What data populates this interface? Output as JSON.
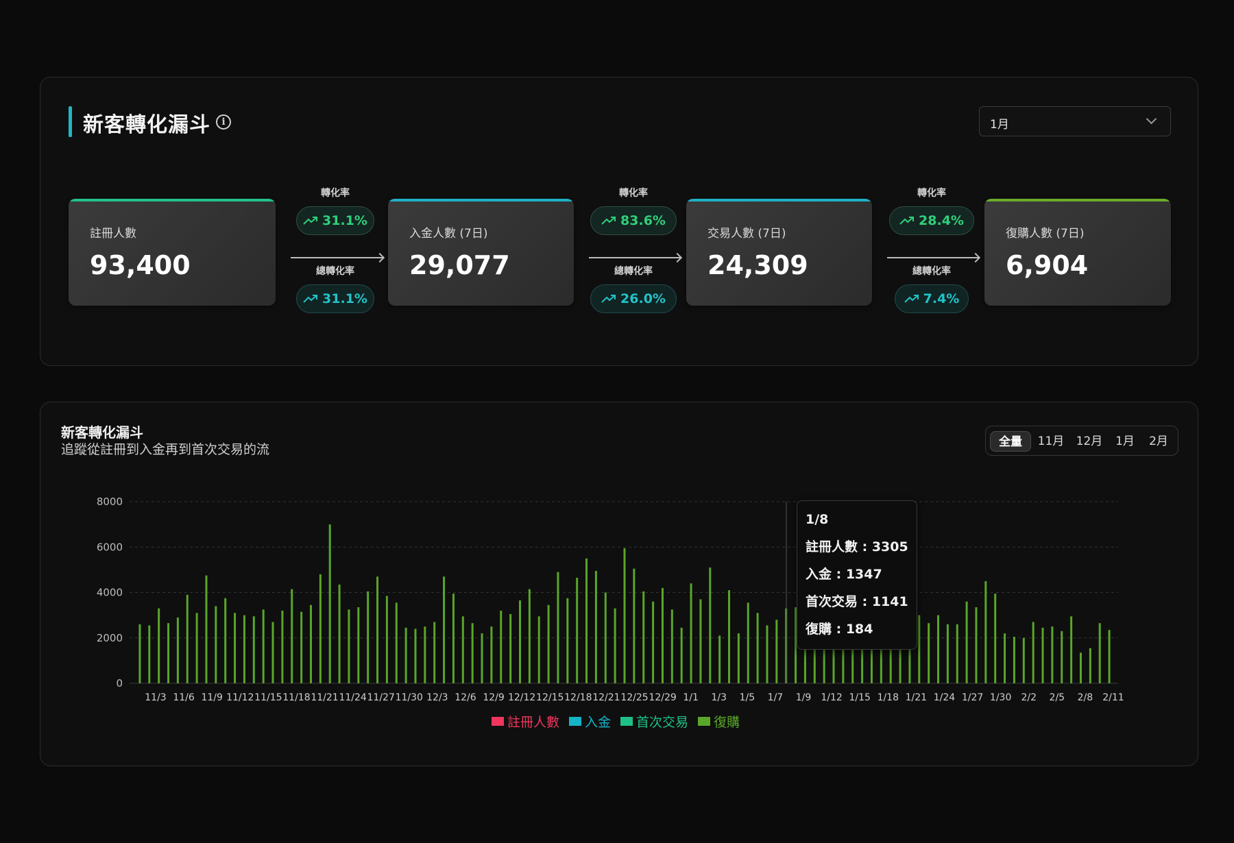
{
  "funnel": {
    "title": "新客轉化漏斗",
    "month_select": {
      "value": "1月"
    },
    "stages": [
      {
        "label": "註冊人數",
        "value": "93,400",
        "color": "#22c08a"
      },
      {
        "label": "入金人數 (7日)",
        "value": "29,077",
        "color": "#1fb0c4"
      },
      {
        "label": "交易人數 (7日)",
        "value": "24,309",
        "color": "#1fb0c4"
      },
      {
        "label": "復購人數 (7日)",
        "value": "6,904",
        "color": "#6aab2a"
      }
    ],
    "transitions": [
      {
        "rate_label": "轉化率",
        "rate": "31.1%",
        "total_label": "總轉化率",
        "total": "31.1%"
      },
      {
        "rate_label": "轉化率",
        "rate": "83.6%",
        "total_label": "總轉化率",
        "total": "26.0%"
      },
      {
        "rate_label": "轉化率",
        "rate": "28.4%",
        "total_label": "總轉化率",
        "total": "7.4%"
      }
    ]
  },
  "chart_panel": {
    "title": "新客轉化漏斗",
    "subtitle": "追蹤從註冊到入金再到首次交易的流",
    "range_tabs": [
      {
        "label": "全量",
        "active": true
      },
      {
        "label": "11月",
        "active": false
      },
      {
        "label": "12月",
        "active": false
      },
      {
        "label": "1月",
        "active": false
      },
      {
        "label": "2月",
        "active": false
      }
    ],
    "tooltip": {
      "date": "1/8",
      "lines": [
        "註冊人數 : 3305",
        "入金 : 1347",
        "首次交易 : 1141",
        "復購 : 184"
      ]
    },
    "legend": [
      {
        "name": "註冊人數",
        "color": "#f0365e"
      },
      {
        "name": "入金",
        "color": "#16b4c8"
      },
      {
        "name": "首次交易",
        "color": "#1fc086"
      },
      {
        "name": "復購",
        "color": "#5aa62a"
      }
    ]
  },
  "chart_data": {
    "type": "bar",
    "series": [
      {
        "name": "復購",
        "color": "#5aa62a"
      }
    ],
    "y_ticks": [
      "8000",
      "6000",
      "4000",
      "2000",
      "0"
    ],
    "ylim": [
      0,
      8000
    ],
    "grid": true,
    "legend_position": "bottom",
    "x_tick_labels": [
      "11/3",
      "11/6",
      "11/9",
      "11/12",
      "11/15",
      "11/18",
      "11/21",
      "11/24",
      "11/27",
      "11/30",
      "12/3",
      "12/6",
      "12/9",
      "12/12",
      "12/15",
      "12/18",
      "12/21",
      "12/25",
      "12/29",
      "1/1",
      "1/3",
      "1/5",
      "1/7",
      "1/9",
      "1/12",
      "1/15",
      "1/18",
      "1/21",
      "1/24",
      "1/27",
      "1/30",
      "2/2",
      "2/5",
      "2/8",
      "2/11"
    ],
    "values": [
      2600,
      2550,
      3300,
      2650,
      2900,
      3900,
      3100,
      4750,
      3400,
      3750,
      3100,
      3000,
      2950,
      3250,
      2700,
      3200,
      4150,
      3150,
      3450,
      4800,
      7000,
      4350,
      3250,
      3350,
      4050,
      4700,
      3850,
      3550,
      2450,
      2400,
      2500,
      2700,
      4700,
      3950,
      2950,
      2650,
      2200,
      2500,
      3200,
      3050,
      3650,
      4150,
      2950,
      3450,
      4900,
      3750,
      4650,
      5500,
      4950,
      4000,
      3300,
      5950,
      5050,
      4050,
      3600,
      4200,
      3250,
      2450,
      4400,
      3700,
      5100,
      2100,
      4100,
      2200,
      3550,
      3100,
      2550,
      2800,
      3300,
      3350,
      3305,
      2600,
      2650,
      2700,
      2550,
      2800,
      2400,
      2500,
      2750,
      2650,
      2500,
      2600,
      3000,
      2650,
      3000,
      2600,
      2600,
      3600,
      3350,
      4500,
      3950,
      2200,
      2050,
      2000,
      2700,
      2450,
      2500,
      2300,
      2950,
      1350,
      1550,
      2650,
      2350
    ]
  }
}
